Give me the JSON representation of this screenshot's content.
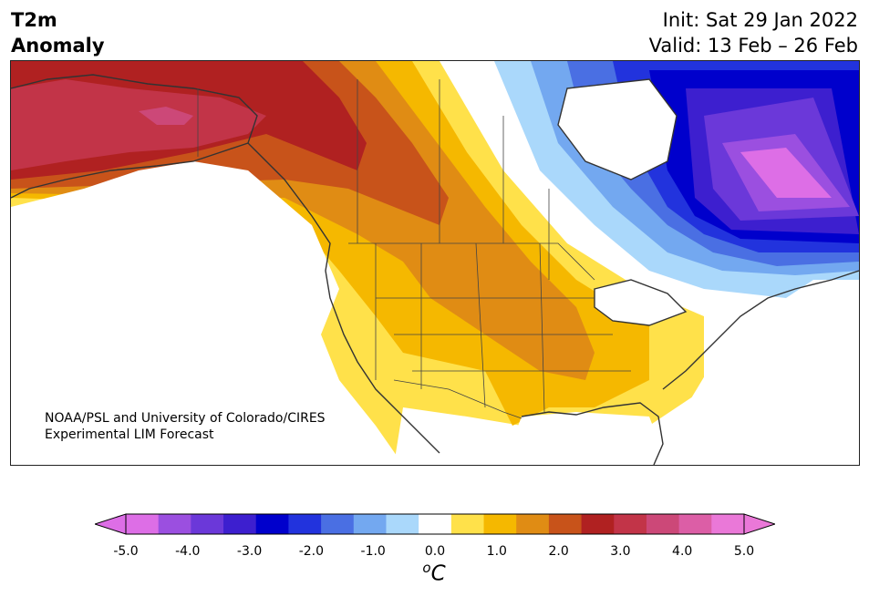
{
  "header": {
    "title_line1": "T2m",
    "title_line2": "Anomaly",
    "init_text": "Init: Sat 29 Jan 2022",
    "valid_text": "Valid: 13 Feb – 26 Feb"
  },
  "credit": {
    "line1": "NOAA/PSL and University of Colorado/CIRES",
    "line2": "Experimental LIM Forecast"
  },
  "colorbar": {
    "unit_symbol": "C",
    "unit_prefix": "o",
    "tick_labels": [
      "-5.0",
      "-4.0",
      "-3.0",
      "-2.0",
      "-1.0",
      "0.0",
      "1.0",
      "2.0",
      "3.0",
      "4.0",
      "5.0"
    ],
    "levels": [
      -5.0,
      -4.5,
      -4.0,
      -3.5,
      -3.0,
      -2.5,
      -2.0,
      -1.5,
      -1.0,
      -0.5,
      0.5,
      1.0,
      1.5,
      2.0,
      2.5,
      3.0,
      3.5,
      4.0,
      4.5,
      5.0
    ],
    "colors": [
      "#dd6ee6",
      "#9b4fe0",
      "#6b38d9",
      "#3d1fcf",
      "#0000cc",
      "#2233dd",
      "#4a6fe3",
      "#73a8f0",
      "#aad8fb",
      "#ffffff",
      "#ffe14a",
      "#f5b800",
      "#e08c14",
      "#c8531a",
      "#b02121",
      "#c23448",
      "#cc4878",
      "#dc5ea6",
      "#ea78d8"
    ],
    "under_color": "#dd6ee6",
    "over_color": "#ea78d8"
  },
  "map": {
    "region": "North America",
    "field": "2m temperature anomaly",
    "colors": {
      "coast": "#333333",
      "border": "#444444"
    }
  }
}
